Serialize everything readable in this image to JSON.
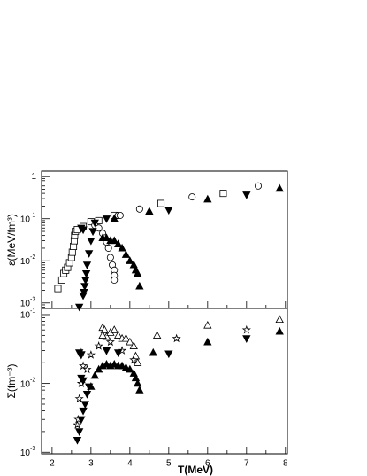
{
  "chart_data": [
    {
      "type": "scatter",
      "y_label": "ε(MeV/fm³)",
      "log_y": true,
      "xlim": [
        1.73,
        8.05
      ],
      "ylim": [
        0.00074,
        1.35
      ],
      "yticks": [
        {
          "value": 0.001,
          "label": "10",
          "exponent": "-3"
        },
        {
          "value": 0.01,
          "label": "10",
          "exponent": "-2"
        },
        {
          "value": 0.1,
          "label": "10",
          "exponent": "-1"
        },
        1
      ],
      "series": [
        {
          "marker": "square",
          "filled": false,
          "color": "#000000",
          "x": [
            2.15,
            2.25,
            2.3,
            2.35,
            2.4,
            2.45,
            2.5,
            2.52,
            2.55,
            2.57,
            2.58,
            2.6,
            2.65,
            2.8,
            3.0,
            3.2,
            3.6,
            4.8,
            6.4
          ],
          "values": [
            0.0022,
            0.0035,
            0.005,
            0.006,
            0.007,
            0.009,
            0.012,
            0.016,
            0.022,
            0.03,
            0.04,
            0.05,
            0.055,
            0.065,
            0.085,
            0.09,
            0.12,
            0.23,
            0.4
          ]
        },
        {
          "marker": "circle",
          "filled": false,
          "color": "#000000",
          "x": [
            3.1,
            3.2,
            3.3,
            3.35,
            3.4,
            3.45,
            3.5,
            3.55,
            3.6,
            3.6,
            3.6,
            3.7,
            3.75,
            4.25,
            5.6,
            7.3
          ],
          "values": [
            0.07,
            0.06,
            0.045,
            0.035,
            0.028,
            0.02,
            0.012,
            0.008,
            0.006,
            0.0045,
            0.0035,
            0.12,
            0.12,
            0.17,
            0.33,
            0.6
          ]
        },
        {
          "marker": "triangle-down",
          "filled": true,
          "color": "#000000",
          "x": [
            2.7,
            2.8,
            2.82,
            2.84,
            2.86,
            2.88,
            2.9,
            2.95,
            3.0,
            3.05,
            2.8,
            2.75,
            3.1,
            3.4,
            5.0,
            7.0
          ],
          "values": [
            0.0008,
            0.0015,
            0.0018,
            0.0025,
            0.0035,
            0.005,
            0.008,
            0.015,
            0.03,
            0.05,
            0.055,
            0.06,
            0.08,
            0.1,
            0.16,
            0.37
          ]
        },
        {
          "marker": "triangle-up",
          "filled": true,
          "color": "#000000",
          "x": [
            3.3,
            3.4,
            3.5,
            3.6,
            3.7,
            3.8,
            3.9,
            4.0,
            4.1,
            4.15,
            4.2,
            4.25,
            3.6,
            4.5,
            6.0,
            7.85
          ],
          "values": [
            0.035,
            0.035,
            0.03,
            0.03,
            0.025,
            0.02,
            0.014,
            0.01,
            0.008,
            0.006,
            0.005,
            0.0025,
            0.1,
            0.15,
            0.29,
            0.52
          ]
        }
      ]
    },
    {
      "type": "scatter",
      "y_label": "Σ(fm⁻³)",
      "x_label": "T(MeV)",
      "log_y": true,
      "xlim": [
        1.73,
        8.05
      ],
      "xticks": [
        2,
        3,
        4,
        5,
        6,
        7,
        8
      ],
      "ylim": [
        0.00095,
        0.123
      ],
      "yticks": [
        {
          "value": 0.001,
          "label": "10",
          "exponent": "-3"
        },
        {
          "value": 0.01,
          "label": "10",
          "exponent": "-2"
        },
        {
          "value": 0.1,
          "label": "10",
          "exponent": "-1"
        }
      ],
      "series": [
        {
          "marker": "triangle-up",
          "filled": false,
          "color": "#000000",
          "x": [
            3.3,
            3.35,
            3.4,
            3.5,
            3.6,
            3.7,
            3.8,
            3.9,
            4.0,
            4.1,
            4.15,
            4.2,
            3.3,
            4.7,
            6.0,
            7.85
          ],
          "values": [
            0.065,
            0.06,
            0.048,
            0.055,
            0.06,
            0.05,
            0.045,
            0.045,
            0.04,
            0.035,
            0.025,
            0.02,
            0.05,
            0.05,
            0.07,
            0.085
          ]
        },
        {
          "marker": "star",
          "filled": false,
          "color": "#000000",
          "x": [
            2.65,
            2.67,
            2.7,
            2.75,
            2.8,
            2.75,
            2.9,
            3.0,
            3.2,
            3.5,
            3.8,
            4.1,
            5.2,
            7.0
          ],
          "values": [
            0.0025,
            0.003,
            0.006,
            0.01,
            0.018,
            0.028,
            0.016,
            0.026,
            0.035,
            0.04,
            0.03,
            0.022,
            0.045,
            0.06
          ]
        },
        {
          "marker": "triangle-down",
          "filled": true,
          "color": "#000000",
          "x": [
            2.65,
            2.7,
            2.75,
            2.8,
            2.85,
            2.9,
            2.95,
            2.75,
            2.8,
            2.7,
            2.75,
            3.4,
            3.7,
            5.0,
            7.0
          ],
          "values": [
            0.0015,
            0.002,
            0.003,
            0.004,
            0.005,
            0.007,
            0.009,
            0.012,
            0.011,
            0.028,
            0.026,
            0.03,
            0.028,
            0.027,
            0.045
          ]
        },
        {
          "marker": "triangle-up",
          "filled": true,
          "color": "#000000",
          "x": [
            3.0,
            3.1,
            3.2,
            3.3,
            3.4,
            3.5,
            3.6,
            3.7,
            3.8,
            3.9,
            4.0,
            4.1,
            4.15,
            4.2,
            4.25,
            4.6,
            6.0,
            7.85
          ],
          "values": [
            0.009,
            0.013,
            0.016,
            0.018,
            0.019,
            0.018,
            0.019,
            0.018,
            0.018,
            0.017,
            0.016,
            0.014,
            0.012,
            0.01,
            0.008,
            0.028,
            0.04,
            0.057
          ]
        }
      ]
    }
  ]
}
